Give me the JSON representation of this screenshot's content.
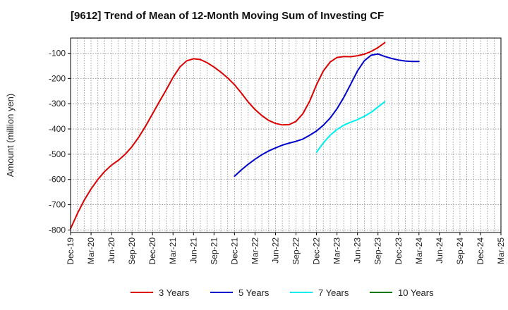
{
  "chart_data": {
    "type": "line",
    "title": "[9612]  Trend of Mean of 12-Month Moving Sum of Investing CF",
    "xlabel": "",
    "ylabel": "Amount (million yen)",
    "ylim": [
      -810,
      -40
    ],
    "yticks": [
      -100,
      -200,
      -300,
      -400,
      -500,
      -600,
      -700,
      -800
    ],
    "ytick_labels": [
      "-100",
      "-200",
      "-300",
      "-400",
      "-500",
      "-600",
      "-700",
      "-800"
    ],
    "x_tick_labels": [
      "Dec-19",
      "Mar-20",
      "Jun-20",
      "Sep-20",
      "Dec-20",
      "Mar-21",
      "Jun-21",
      "Sep-21",
      "Dec-21",
      "Mar-22",
      "Jun-22",
      "Sep-22",
      "Dec-22",
      "Mar-23",
      "Jun-23",
      "Sep-23",
      "Dec-23",
      "Mar-24",
      "Jun-24",
      "Sep-24",
      "Dec-24",
      "Mar-25"
    ],
    "grid": true,
    "legend_position": "bottom",
    "series": [
      {
        "name": "3 Years",
        "color": "#dd0000",
        "start_index": 0,
        "values": [
          -795,
          -735,
          -682,
          -638,
          -600,
          -568,
          -543,
          -524,
          -500,
          -470,
          -432,
          -388,
          -340,
          -292,
          -245,
          -196,
          -155,
          -130,
          -122,
          -125,
          -138,
          -155,
          -175,
          -198,
          -225,
          -258,
          -293,
          -323,
          -347,
          -366,
          -378,
          -384,
          -383,
          -370,
          -340,
          -290,
          -225,
          -170,
          -135,
          -117,
          -113,
          -114,
          -110,
          -104,
          -93,
          -78,
          -58
        ]
      },
      {
        "name": "5 Years",
        "color": "#0000cc",
        "start_index": 24,
        "values": [
          -587,
          -562,
          -540,
          -520,
          -502,
          -487,
          -475,
          -464,
          -456,
          -449,
          -440,
          -425,
          -408,
          -385,
          -357,
          -320,
          -275,
          -223,
          -170,
          -130,
          -108,
          -103,
          -113,
          -121,
          -127,
          -131,
          -133,
          -133
        ]
      },
      {
        "name": "7 Years",
        "color": "#00eeee",
        "start_index": 36,
        "values": [
          -492,
          -455,
          -425,
          -402,
          -385,
          -373,
          -363,
          -350,
          -334,
          -313,
          -292
        ]
      },
      {
        "name": "10 Years",
        "color": "#007700",
        "start_index": 0,
        "values": []
      }
    ]
  }
}
